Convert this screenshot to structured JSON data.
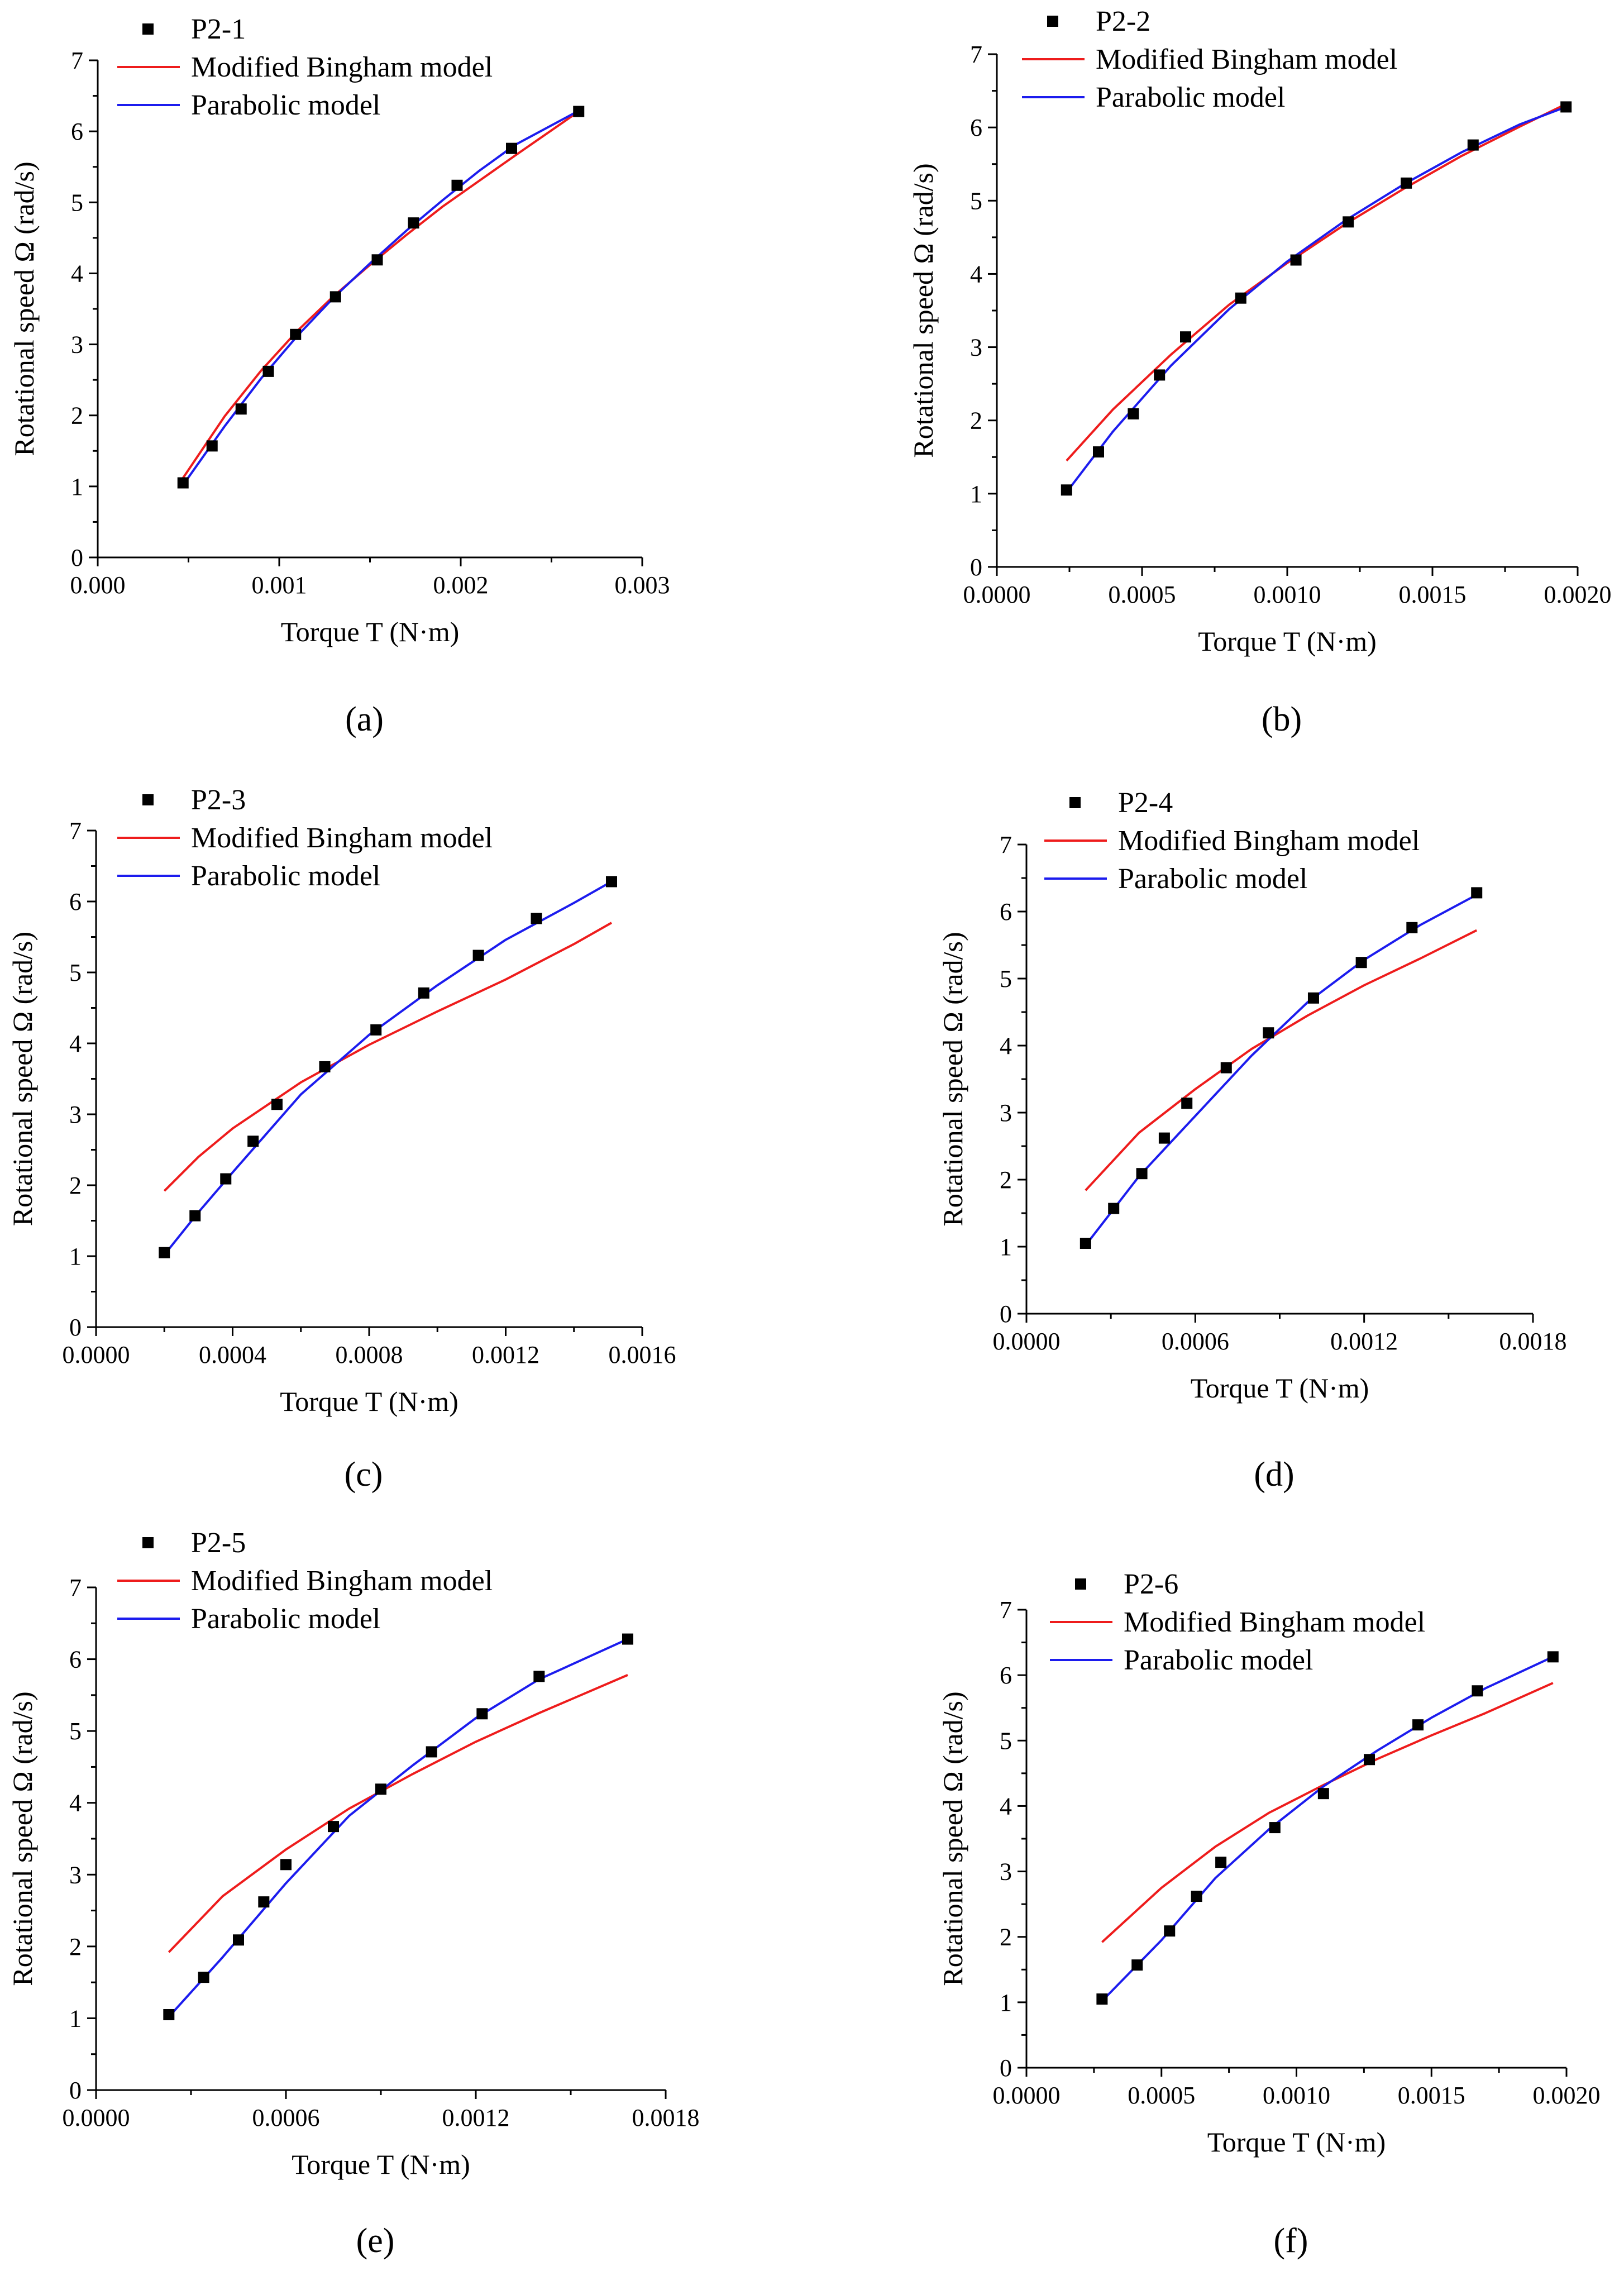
{
  "figure": {
    "legend_labels": {
      "model1": "Modified Bingham model",
      "model2": "Parabolic model"
    },
    "colors": {
      "model1": "#ee1c1c",
      "model2": "#1c1cee",
      "points": "#000000",
      "axis": "#000000"
    }
  },
  "chart_data": [
    {
      "panel": "(a)",
      "type": "line",
      "series_name": "P2-1",
      "xlabel": "Torque T (N·m)",
      "ylabel": "Rotational speed Ω (rad/s)",
      "xlim": [
        0,
        0.003
      ],
      "ylim": [
        0,
        7
      ],
      "xticks": [
        "0.000",
        "0.001",
        "0.002",
        "0.003"
      ],
      "xtick_values": [
        0,
        0.001,
        0.002,
        0.003
      ],
      "yticks": [
        "0",
        "1",
        "2",
        "3",
        "4",
        "5",
        "6",
        "7"
      ],
      "points": {
        "x": [
          0.00047,
          0.00063,
          0.00079,
          0.00094,
          0.00109,
          0.00131,
          0.00154,
          0.00174,
          0.00198,
          0.00228,
          0.00265
        ],
        "y": [
          1.05,
          1.57,
          2.09,
          2.62,
          3.14,
          3.67,
          4.19,
          4.71,
          5.24,
          5.76,
          6.28
        ]
      },
      "model1": {
        "x": [
          0.00047,
          0.0007,
          0.0009,
          0.0011,
          0.0013,
          0.0015,
          0.0017,
          0.0019,
          0.0021,
          0.0023,
          0.00265
        ],
        "y": [
          1.12,
          1.99,
          2.63,
          3.19,
          3.68,
          4.12,
          4.54,
          4.94,
          5.3,
          5.66,
          6.28
        ]
      },
      "model2": {
        "x": [
          0.00047,
          0.0007,
          0.0009,
          0.0011,
          0.0013,
          0.0015,
          0.0017,
          0.0019,
          0.0021,
          0.0023,
          0.00265
        ],
        "y": [
          1.02,
          1.85,
          2.52,
          3.12,
          3.66,
          4.14,
          4.6,
          5.03,
          5.44,
          5.81,
          6.29
        ]
      }
    },
    {
      "panel": "(b)",
      "type": "line",
      "series_name": "P2-2",
      "xlabel": "Torque T (N·m)",
      "ylabel": "Rotational speed Ω (rad/s)",
      "xlim": [
        0,
        0.002
      ],
      "ylim": [
        0,
        7
      ],
      "xticks": [
        "0.0000",
        "0.0005",
        "0.0010",
        "0.0015",
        "0.0020"
      ],
      "xtick_values": [
        0,
        0.0005,
        0.001,
        0.0015,
        0.002
      ],
      "yticks": [
        "0",
        "1",
        "2",
        "3",
        "4",
        "5",
        "6",
        "7"
      ],
      "points": {
        "x": [
          0.00024,
          0.00035,
          0.00047,
          0.00056,
          0.00065,
          0.00084,
          0.00103,
          0.00121,
          0.00141,
          0.00164,
          0.00196
        ],
        "y": [
          1.05,
          1.57,
          2.09,
          2.62,
          3.14,
          3.67,
          4.19,
          4.71,
          5.24,
          5.76,
          6.28
        ]
      },
      "model1": {
        "x": [
          0.00024,
          0.0004,
          0.0006,
          0.0008,
          0.001,
          0.0012,
          0.0014,
          0.0016,
          0.0018,
          0.00196
        ],
        "y": [
          1.45,
          2.15,
          2.9,
          3.58,
          4.15,
          4.68,
          5.16,
          5.61,
          6.01,
          6.32
        ]
      },
      "model2": {
        "x": [
          0.00024,
          0.0004,
          0.0006,
          0.0008,
          0.001,
          0.0012,
          0.0014,
          0.0016,
          0.0018,
          0.00196
        ],
        "y": [
          1.02,
          1.85,
          2.75,
          3.52,
          4.17,
          4.73,
          5.22,
          5.66,
          6.04,
          6.28
        ]
      }
    },
    {
      "panel": "(c)",
      "type": "line",
      "series_name": "P2-3",
      "xlabel": "Torque T (N·m)",
      "ylabel": "Rotational speed Ω (rad/s)",
      "xlim": [
        0,
        0.0016
      ],
      "ylim": [
        0,
        7
      ],
      "xticks": [
        "0.0000",
        "0.0004",
        "0.0008",
        "0.0012",
        "0.0016"
      ],
      "xtick_values": [
        0,
        0.0004,
        0.0008,
        0.0012,
        0.0016
      ],
      "yticks": [
        "0",
        "1",
        "2",
        "3",
        "4",
        "5",
        "6",
        "7"
      ],
      "points": {
        "x": [
          0.0002,
          0.00029,
          0.00038,
          0.00046,
          0.00053,
          0.00067,
          0.00082,
          0.00096,
          0.00112,
          0.00129,
          0.00151
        ],
        "y": [
          1.05,
          1.57,
          2.09,
          2.62,
          3.14,
          3.67,
          4.19,
          4.71,
          5.24,
          5.76,
          6.28
        ]
      },
      "model1": {
        "x": [
          0.0002,
          0.0003,
          0.0004,
          0.0006,
          0.0008,
          0.001,
          0.0012,
          0.0014,
          0.00151
        ],
        "y": [
          1.92,
          2.4,
          2.8,
          3.45,
          3.98,
          4.45,
          4.9,
          5.4,
          5.7
        ]
      },
      "model2": {
        "x": [
          0.0002,
          0.0003,
          0.0004,
          0.0006,
          0.0008,
          0.001,
          0.0012,
          0.0014,
          0.00151
        ],
        "y": [
          1.02,
          1.62,
          2.18,
          3.28,
          4.12,
          4.82,
          5.46,
          5.98,
          6.28
        ]
      }
    },
    {
      "panel": "(d)",
      "type": "line",
      "series_name": "P2-4",
      "xlabel": "Torque T (N·m)",
      "ylabel": "Rotational speed Ω (rad/s)",
      "xlim": [
        0,
        0.0018
      ],
      "ylim": [
        0,
        7
      ],
      "xticks": [
        "0.0000",
        "0.0006",
        "0.0012",
        "0.0018"
      ],
      "xtick_values": [
        0,
        0.0006,
        0.0012,
        0.0018
      ],
      "yticks": [
        "0",
        "1",
        "2",
        "3",
        "4",
        "5",
        "6",
        "7"
      ],
      "points": {
        "x": [
          0.00021,
          0.00031,
          0.00041,
          0.00049,
          0.00057,
          0.00071,
          0.00086,
          0.00102,
          0.00119,
          0.00137,
          0.0016
        ],
        "y": [
          1.05,
          1.57,
          2.09,
          2.62,
          3.14,
          3.67,
          4.19,
          4.71,
          5.24,
          5.76,
          6.28
        ]
      },
      "model1": {
        "x": [
          0.00021,
          0.0004,
          0.0006,
          0.0008,
          0.001,
          0.0012,
          0.0014,
          0.0016
        ],
        "y": [
          1.84,
          2.7,
          3.35,
          3.95,
          4.45,
          4.9,
          5.3,
          5.72
        ]
      },
      "model2": {
        "x": [
          0.00021,
          0.0004,
          0.0006,
          0.0008,
          0.001,
          0.0012,
          0.0014,
          0.0016
        ],
        "y": [
          1.02,
          2.05,
          2.95,
          3.85,
          4.65,
          5.28,
          5.8,
          6.25
        ]
      }
    },
    {
      "panel": "(e)",
      "type": "line",
      "series_name": "P2-5",
      "xlabel": "Torque T (N·m)",
      "ylabel": "Rotational speed Ω (rad/s)",
      "xlim": [
        0,
        0.0018
      ],
      "ylim": [
        0,
        7
      ],
      "xticks": [
        "0.0000",
        "0.0006",
        "0.0012",
        "0.0018"
      ],
      "xtick_values": [
        0,
        0.0006,
        0.0012,
        0.0018
      ],
      "yticks": [
        "0",
        "1",
        "2",
        "3",
        "4",
        "5",
        "6",
        "7"
      ],
      "points": {
        "x": [
          0.00023,
          0.00034,
          0.00045,
          0.00053,
          0.0006,
          0.00075,
          0.0009,
          0.00106,
          0.00122,
          0.0014,
          0.00168
        ],
        "y": [
          1.05,
          1.57,
          2.09,
          2.62,
          3.14,
          3.67,
          4.19,
          4.71,
          5.24,
          5.76,
          6.28
        ]
      },
      "model1": {
        "x": [
          0.00023,
          0.0004,
          0.0006,
          0.0008,
          0.001,
          0.0012,
          0.0014,
          0.00168
        ],
        "y": [
          1.92,
          2.7,
          3.35,
          3.92,
          4.4,
          4.85,
          5.25,
          5.78
        ]
      },
      "model2": {
        "x": [
          0.00023,
          0.0004,
          0.0006,
          0.0008,
          0.001,
          0.0012,
          0.0014,
          0.00168
        ],
        "y": [
          1.02,
          1.85,
          2.88,
          3.82,
          4.52,
          5.18,
          5.72,
          6.28
        ]
      }
    },
    {
      "panel": "(f)",
      "type": "line",
      "series_name": "P2-6",
      "xlabel": "Torque T (N·m)",
      "ylabel": "Rotational speed Ω (rad/s)",
      "xlim": [
        0,
        0.002
      ],
      "ylim": [
        0,
        7
      ],
      "xticks": [
        "0.0000",
        "0.0005",
        "0.0010",
        "0.0015",
        "0.0020"
      ],
      "xtick_values": [
        0,
        0.0005,
        0.001,
        0.0015,
        0.002
      ],
      "yticks": [
        "0",
        "1",
        "2",
        "3",
        "4",
        "5",
        "6",
        "7"
      ],
      "points": {
        "x": [
          0.00028,
          0.00041,
          0.00053,
          0.00063,
          0.00072,
          0.00092,
          0.0011,
          0.00127,
          0.00145,
          0.00167,
          0.00195
        ],
        "y": [
          1.05,
          1.57,
          2.09,
          2.62,
          3.14,
          3.67,
          4.19,
          4.71,
          5.24,
          5.76,
          6.28
        ]
      },
      "model1": {
        "x": [
          0.00028,
          0.0005,
          0.0007,
          0.0009,
          0.0011,
          0.0013,
          0.0015,
          0.0017,
          0.00195
        ],
        "y": [
          1.92,
          2.75,
          3.38,
          3.9,
          4.32,
          4.72,
          5.08,
          5.42,
          5.88
        ]
      },
      "model2": {
        "x": [
          0.00028,
          0.0005,
          0.0007,
          0.0009,
          0.0011,
          0.0013,
          0.0015,
          0.0017,
          0.00195
        ],
        "y": [
          1.02,
          1.95,
          2.9,
          3.65,
          4.3,
          4.85,
          5.35,
          5.8,
          6.28
        ]
      }
    }
  ]
}
